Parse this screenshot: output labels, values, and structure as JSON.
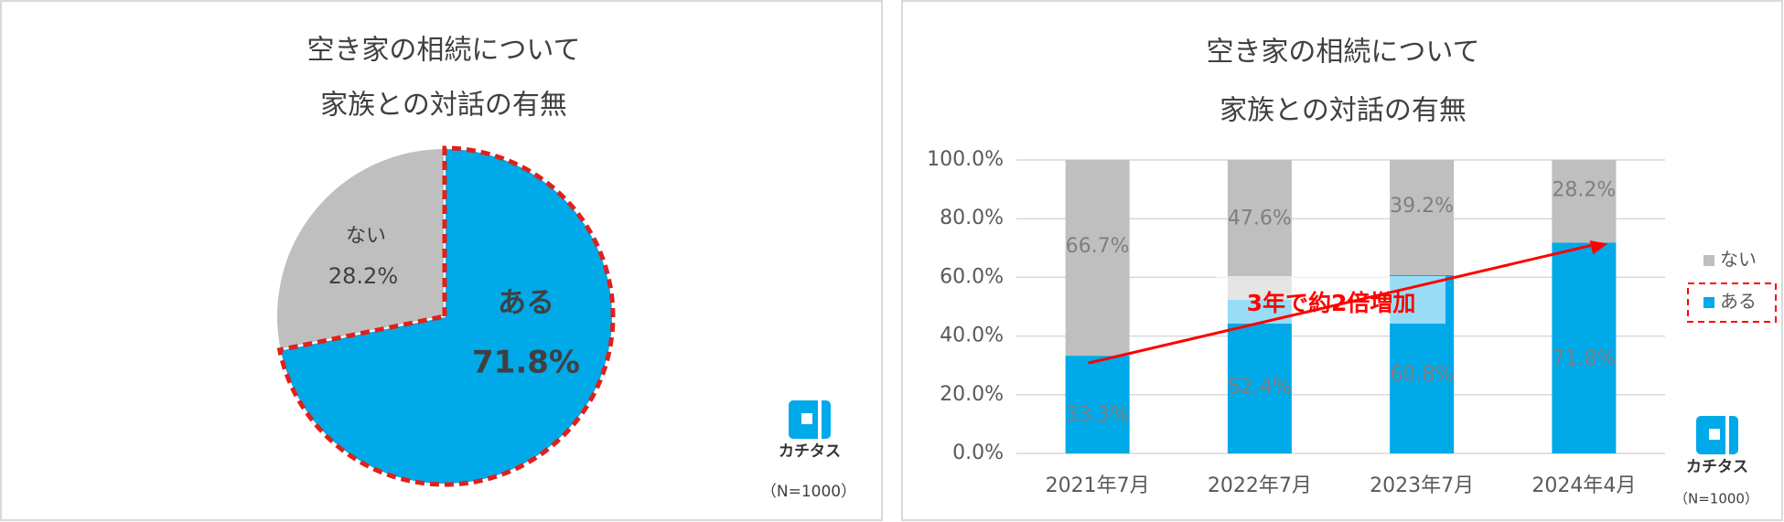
{
  "chart_data": [
    {
      "type": "pie",
      "title": [
        "空き家の相続について",
        "家族との対話の有無"
      ],
      "categories": [
        "ない",
        "ある"
      ],
      "values": [
        28.2,
        71.8
      ],
      "value_labels": [
        "28.2%",
        "71.8%"
      ],
      "colors": [
        "#bfbfbf",
        "#00a9e8"
      ],
      "highlight_color": "#e0201b",
      "logo": "カチタス",
      "note": "（N=1000）"
    },
    {
      "type": "stacked-bar",
      "title": [
        "空き家の相続について",
        "家族との対話の有無"
      ],
      "categories": [
        "2021年7月",
        "2022年7月",
        "2023年7月",
        "2024年4月"
      ],
      "series": [
        {
          "name": "ある",
          "color": "#00a9e8",
          "values": [
            33.3,
            52.4,
            60.8,
            71.8
          ],
          "value_labels": [
            "33.3%",
            "52.4%",
            "60.8%",
            "71.8%"
          ]
        },
        {
          "name": "ない",
          "color": "#bfbfbf",
          "values": [
            66.7,
            47.6,
            39.2,
            28.2
          ],
          "value_labels": [
            "66.7%",
            "47.6%",
            "39.2%",
            "28.2%"
          ]
        }
      ],
      "ylim": [
        0,
        100
      ],
      "yticks": [
        {
          "value": 0,
          "label": "0.0%"
        },
        {
          "value": 20,
          "label": "20.0%"
        },
        {
          "value": 40,
          "label": "40.0%"
        },
        {
          "value": 60,
          "label": "60.0%"
        },
        {
          "value": 80,
          "label": "80.0%"
        },
        {
          "value": 100,
          "label": "100.0%"
        }
      ],
      "grid": true,
      "legend": "right",
      "annotation": "3年で約2倍増加",
      "annotation_color": "#ff0000",
      "logo": "カチタス",
      "note": "（N=1000）"
    }
  ]
}
